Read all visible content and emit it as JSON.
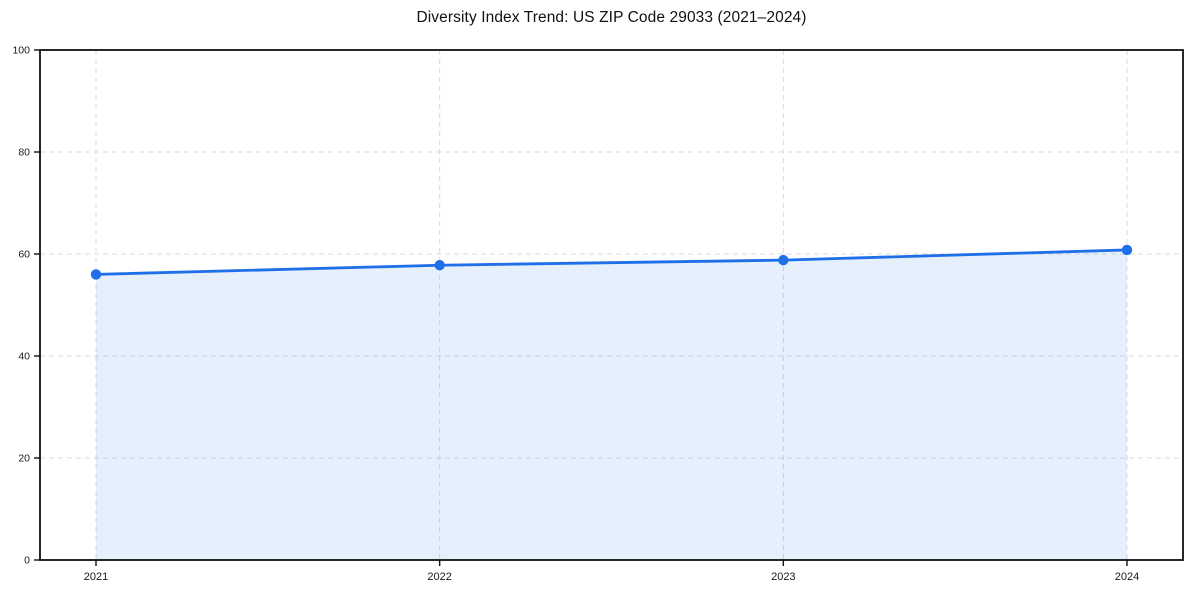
{
  "chart_data": {
    "type": "line",
    "title": "Diversity Index Trend: US ZIP Code 29033 (2021–2024)",
    "categories": [
      "2021",
      "2022",
      "2023",
      "2024"
    ],
    "series": [
      {
        "name": "Diversity Index",
        "values": [
          56.0,
          57.8,
          58.8,
          60.8
        ]
      }
    ],
    "xlabel": "",
    "ylabel": "",
    "ylim": [
      0,
      100
    ],
    "yticks": [
      0,
      20,
      40,
      60,
      80,
      100
    ],
    "grid": true,
    "grid_style": "dashed",
    "legend": "none",
    "marker": "circle",
    "area_fill": true,
    "colors": {
      "line": "#1f6fe8",
      "marker": "#1f6fe8",
      "fill": "#1f6fe8",
      "fill_opacity": 0.11,
      "grid": "#d9d9d9",
      "spine": "#111111",
      "tick_label": "#1a1a1a",
      "background": "#ffffff"
    }
  }
}
